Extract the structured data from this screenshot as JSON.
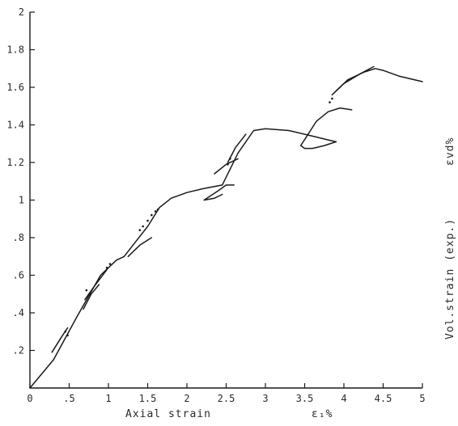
{
  "chart_data": {
    "type": "line",
    "xlabel": "Axial strain",
    "xlabel_symbol": "ε₁%",
    "ylabel": "Vol.strain (exp.)",
    "ylabel_symbol": "εvd%",
    "xlim": [
      0,
      5
    ],
    "ylim": [
      0,
      2
    ],
    "x_ticks": [
      {
        "value": 0,
        "label": "0"
      },
      {
        "value": 0.5,
        "label": ".5"
      },
      {
        "value": 1,
        "label": "1"
      },
      {
        "value": 1.5,
        "label": "1.5"
      },
      {
        "value": 2,
        "label": "2"
      },
      {
        "value": 2.5,
        "label": "2.5"
      },
      {
        "value": 3,
        "label": "3"
      },
      {
        "value": 3.5,
        "label": "3.5"
      },
      {
        "value": 4,
        "label": "4"
      },
      {
        "value": 4.5,
        "label": "4.5"
      },
      {
        "value": 5,
        "label": "5"
      }
    ],
    "y_ticks": [
      {
        "value": 0.2,
        "label": ".2"
      },
      {
        "value": 0.4,
        "label": ".4"
      },
      {
        "value": 0.6,
        "label": ".6"
      },
      {
        "value": 0.8,
        "label": ".8"
      },
      {
        "value": 1.0,
        "label": "1"
      },
      {
        "value": 1.2,
        "label": "1.2"
      },
      {
        "value": 1.4,
        "label": "1.4"
      },
      {
        "value": 1.6,
        "label": "1.6"
      },
      {
        "value": 1.8,
        "label": "1.8"
      },
      {
        "value": 2.0,
        "label": "2"
      }
    ],
    "grid": false,
    "line_color": "#1a1a1a",
    "series": [
      {
        "points": [
          [
            0,
            0
          ],
          [
            0.3,
            0.15
          ],
          [
            0.6,
            0.38
          ],
          [
            0.9,
            0.6
          ],
          [
            1.1,
            0.68
          ],
          [
            1.2,
            0.7
          ],
          [
            1.35,
            0.78
          ],
          [
            1.5,
            0.86
          ],
          [
            1.65,
            0.96
          ],
          [
            1.8,
            1.01
          ],
          [
            2.0,
            1.04
          ],
          [
            2.2,
            1.06
          ],
          [
            2.45,
            1.08
          ],
          [
            2.65,
            1.25
          ],
          [
            2.85,
            1.37
          ],
          [
            3.0,
            1.38
          ],
          [
            3.3,
            1.37
          ],
          [
            3.6,
            1.34
          ],
          [
            3.8,
            1.32
          ],
          [
            3.9,
            1.31
          ]
        ]
      },
      {
        "points": [
          [
            3.9,
            1.31
          ],
          [
            3.75,
            1.29
          ],
          [
            3.6,
            1.275
          ],
          [
            3.5,
            1.275
          ],
          [
            3.45,
            1.29
          ]
        ]
      },
      {
        "points": [
          [
            3.45,
            1.29
          ],
          [
            3.65,
            1.42
          ],
          [
            3.8,
            1.47
          ],
          [
            3.95,
            1.49
          ],
          [
            4.1,
            1.48
          ]
        ]
      },
      {
        "points": [
          [
            3.85,
            1.56
          ],
          [
            4.05,
            1.64
          ],
          [
            4.25,
            1.68
          ],
          [
            4.4,
            1.7
          ],
          [
            4.5,
            1.69
          ],
          [
            4.7,
            1.66
          ],
          [
            5.0,
            1.63
          ]
        ]
      },
      {
        "points": [
          [
            3.9,
            1.58
          ],
          [
            4.0,
            1.62
          ],
          [
            4.2,
            1.67
          ],
          [
            4.38,
            1.71
          ]
        ]
      },
      {
        "points": [
          [
            0.28,
            0.19
          ],
          [
            0.4,
            0.27
          ],
          [
            0.48,
            0.32
          ]
        ]
      },
      {
        "points": [
          [
            0.68,
            0.42
          ],
          [
            0.78,
            0.5
          ],
          [
            0.88,
            0.55
          ]
        ]
      },
      {
        "points": [
          [
            0.7,
            0.47
          ],
          [
            0.8,
            0.53
          ],
          [
            0.98,
            0.63
          ]
        ]
      },
      {
        "points": [
          [
            1.25,
            0.7
          ],
          [
            1.4,
            0.76
          ],
          [
            1.55,
            0.8
          ]
        ]
      },
      {
        "points": [
          [
            2.22,
            1.0
          ],
          [
            2.35,
            1.01
          ],
          [
            2.45,
            1.03
          ]
        ]
      },
      {
        "points": [
          [
            2.22,
            1.0
          ],
          [
            2.4,
            1.05
          ],
          [
            2.5,
            1.08
          ],
          [
            2.6,
            1.08
          ]
        ]
      },
      {
        "points": [
          [
            2.35,
            1.14
          ],
          [
            2.5,
            1.19
          ],
          [
            2.65,
            1.22
          ]
        ]
      },
      {
        "points": [
          [
            2.52,
            1.2
          ],
          [
            2.62,
            1.28
          ],
          [
            2.75,
            1.35
          ]
        ]
      }
    ],
    "dots": [
      [
        0.45,
        0.3
      ],
      [
        0.48,
        0.28
      ],
      [
        0.72,
        0.52
      ],
      [
        0.76,
        0.5
      ],
      [
        0.98,
        0.64
      ],
      [
        1.02,
        0.66
      ],
      [
        1.4,
        0.84
      ],
      [
        1.44,
        0.86
      ],
      [
        1.5,
        0.89
      ],
      [
        1.55,
        0.92
      ],
      [
        1.6,
        0.94
      ],
      [
        1.63,
        0.95
      ],
      [
        2.52,
        1.19
      ],
      [
        2.55,
        1.22
      ],
      [
        3.82,
        1.52
      ],
      [
        3.85,
        1.54
      ]
    ]
  }
}
